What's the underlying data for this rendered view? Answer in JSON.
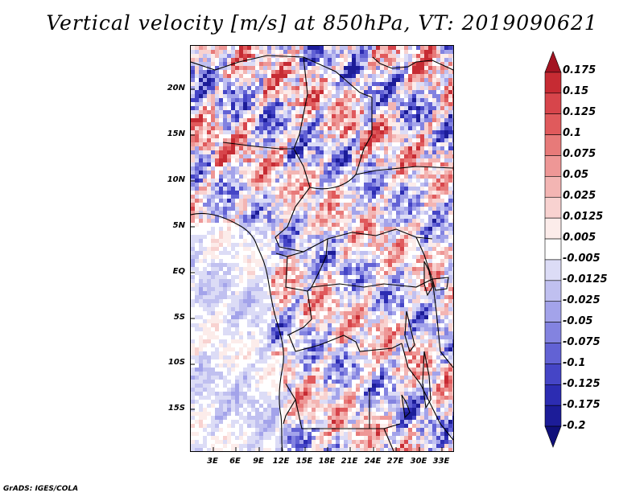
{
  "title": "Vertical velocity [m/s] at 850hPa, VT: 2019090621",
  "credit": "GrADS: IGES/COLA",
  "lat_ticks": [
    "20N",
    "15N",
    "10N",
    "5N",
    "EQ",
    "5S",
    "10S",
    "15S"
  ],
  "lon_ticks": [
    "3E",
    "6E",
    "9E",
    "12E",
    "15E",
    "18E",
    "21E",
    "24E",
    "27E",
    "30E",
    "33E"
  ],
  "colorbar": {
    "labels": [
      "0.175",
      "0.15",
      "0.125",
      "0.1",
      "0.075",
      "0.05",
      "0.025",
      "0.0125",
      "0.005",
      "-0.005",
      "-0.0125",
      "-0.025",
      "-0.05",
      "-0.075",
      "-0.1",
      "-0.125",
      "-0.175",
      "-0.2"
    ],
    "colors": [
      "#a31422",
      "#c62b33",
      "#d7454b",
      "#e05a5c",
      "#e77a79",
      "#ee9796",
      "#f3b5b3",
      "#f8d2d0",
      "#fcecea",
      "#ffffff",
      "#dcdcf6",
      "#c0c0f0",
      "#a3a3ea",
      "#8383e0",
      "#6262d4",
      "#4545c6",
      "#2c2cb2",
      "#1c1c98",
      "#10107a"
    ]
  },
  "map_colors": {
    "red": "#c8323c",
    "blue": "#4848d0",
    "neutral": "#ffffff"
  }
}
